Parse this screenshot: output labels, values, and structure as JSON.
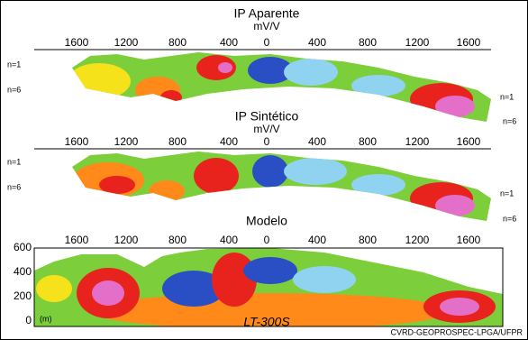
{
  "panels": [
    {
      "title": "IP Aparente",
      "unit": "mV/V",
      "ticks": [
        "1600",
        "1200",
        "800",
        "400",
        "0",
        "400",
        "800",
        "1200",
        "1600"
      ],
      "left_labels": [
        "n=1",
        "n=6"
      ],
      "right_labels": [
        "n=1",
        "n=6"
      ]
    },
    {
      "title": "IP Sintético",
      "unit": "mV/V",
      "ticks": [
        "1600",
        "1200",
        "800",
        "400",
        "0",
        "400",
        "800",
        "1200",
        "1600"
      ],
      "left_labels": [
        "n=1",
        "n=6"
      ],
      "right_labels": [
        "n=1",
        "n=6"
      ]
    },
    {
      "title": "Modelo",
      "ticks": [
        "1600",
        "1200",
        "800",
        "400",
        "0",
        "400",
        "800",
        "1200",
        "1600"
      ],
      "depth_ticks": [
        "600",
        "400",
        "200",
        "0"
      ],
      "depth_unit": "(m)"
    }
  ],
  "footer": {
    "line_name": "LT-300S",
    "credit": "CVRD-GEOPROSPEC-LPGA/UFPR"
  }
}
